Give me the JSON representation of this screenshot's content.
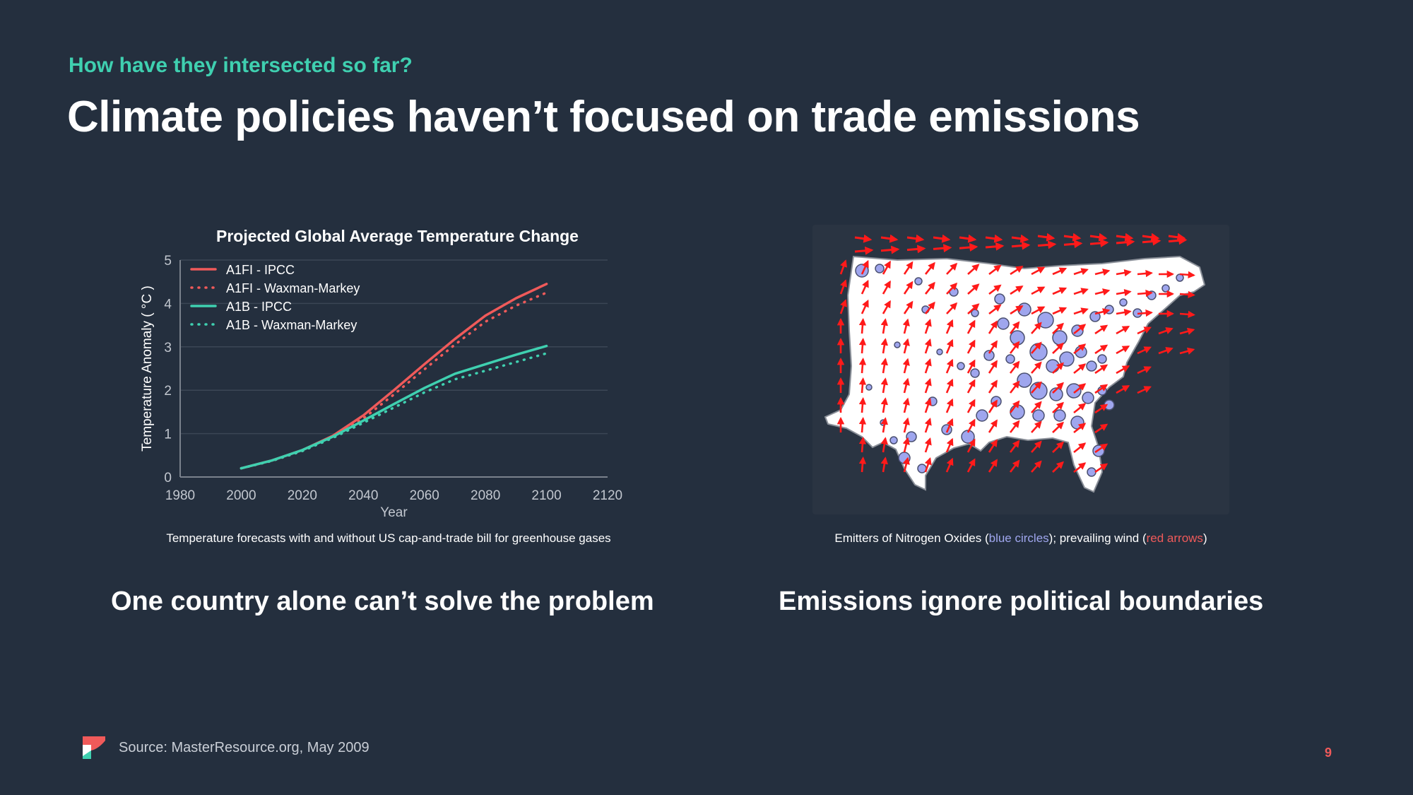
{
  "slide": {
    "eyebrow": "How have they intersected so far?",
    "title": "Climate policies haven’t focused on trade emissions",
    "left_caption": "Temperature forecasts with and without US cap-and-trade bill for greenhouse gases",
    "right_caption": {
      "part1": "Emitters of Nitrogen Oxides (",
      "blue": "blue circles",
      "part2": "); prevailing wind (",
      "red": "red arrows",
      "part3": ")"
    },
    "left_subhead": "One country alone can’t solve the problem",
    "right_subhead": "Emissions ignore political boundaries",
    "source": "Source: MasterResource.org, May 2009",
    "page_number": "9",
    "logo_icon": "brand-logo-icon",
    "map_icon": "us-emissions-wind-map"
  },
  "colors": {
    "background": "#242f3e",
    "accent_teal": "#3fd0b0",
    "accent_red": "#f05a5a",
    "circle_blue": "#9fa6ee"
  },
  "chart_data": {
    "type": "line",
    "title": "Projected Global Average Temperature Change",
    "xlabel": "Year",
    "ylabel": "Temperature Anomaly ( °C )",
    "xlim": [
      1980,
      2120
    ],
    "ylim": [
      0,
      5
    ],
    "xticks": [
      1980,
      2000,
      2020,
      2040,
      2060,
      2080,
      2100,
      2120
    ],
    "yticks": [
      0,
      1,
      2,
      3,
      4,
      5
    ],
    "grid": true,
    "legend_position": "top-left",
    "x": [
      2000,
      2010,
      2020,
      2030,
      2040,
      2050,
      2060,
      2070,
      2080,
      2090,
      2100
    ],
    "series": [
      {
        "name": "A1FI - IPCC",
        "color": "#f05a5a",
        "style": "solid",
        "values": [
          0.2,
          0.38,
          0.62,
          0.95,
          1.42,
          2.0,
          2.6,
          3.18,
          3.72,
          4.12,
          4.45
        ]
      },
      {
        "name": "A1FI - Waxman-Markey",
        "color": "#f05a5a",
        "style": "dotted",
        "values": [
          0.2,
          0.37,
          0.6,
          0.92,
          1.35,
          1.9,
          2.48,
          3.05,
          3.58,
          3.95,
          4.25
        ]
      },
      {
        "name": "A1B - IPCC",
        "color": "#3fd0b0",
        "style": "solid",
        "values": [
          0.2,
          0.38,
          0.62,
          0.93,
          1.3,
          1.68,
          2.05,
          2.38,
          2.6,
          2.82,
          3.02
        ]
      },
      {
        "name": "A1B - Waxman-Markey",
        "color": "#3fd0b0",
        "style": "dotted",
        "values": [
          0.2,
          0.37,
          0.6,
          0.9,
          1.25,
          1.6,
          1.95,
          2.25,
          2.45,
          2.65,
          2.85
        ]
      }
    ]
  }
}
